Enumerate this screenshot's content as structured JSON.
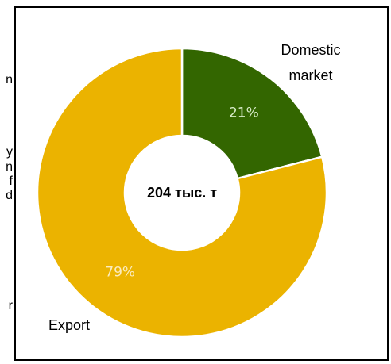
{
  "chart_data": {
    "type": "pie",
    "donut": true,
    "categories": [
      "Domestic market",
      "Export"
    ],
    "values": [
      21,
      79
    ],
    "value_labels": [
      "21%",
      "79%"
    ],
    "colors": [
      "#336600",
      "#ebb300"
    ],
    "center_label": "204 тыс. т"
  },
  "side_text_fragments": [
    "n",
    "y",
    "n",
    "f",
    "d",
    "r"
  ]
}
